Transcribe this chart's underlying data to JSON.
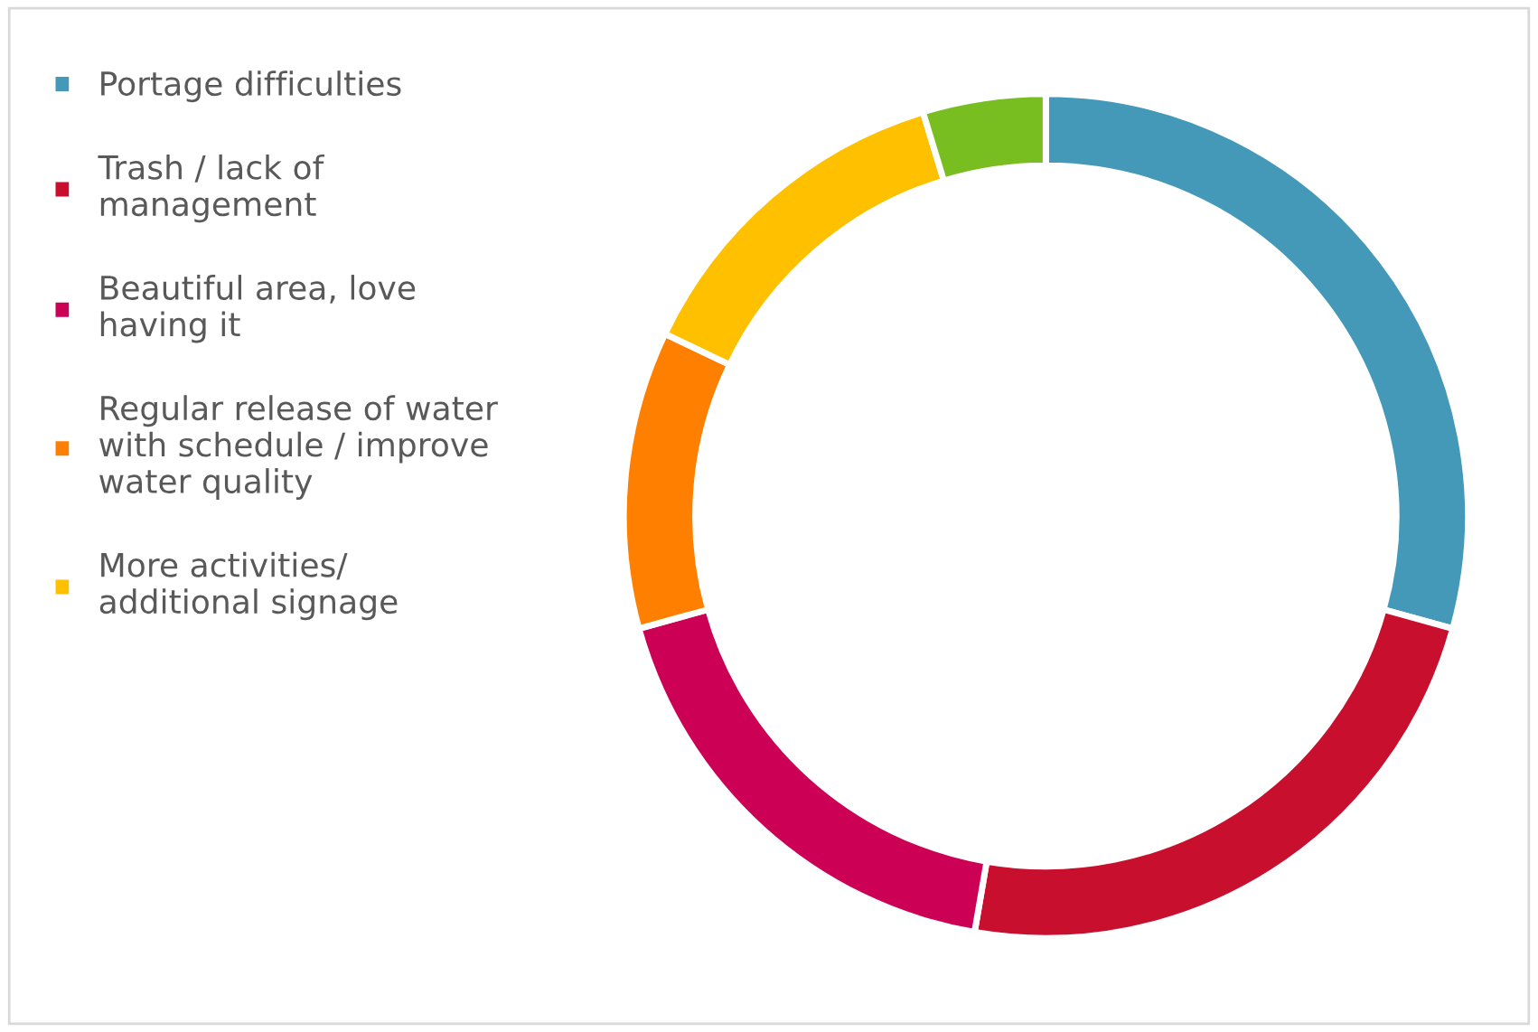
{
  "chart_data": {
    "type": "donut",
    "categories": [
      "Portage difficulties",
      "Trash / lack of\nmanagement",
      "Beautiful area, love\nhaving it",
      "Regular release of water\nwith schedule / improve\nwater quality",
      "More activities/\nadditional signage",
      null
    ],
    "values": [
      29.3,
      23.4,
      18.0,
      11.4,
      13.2,
      4.7
    ],
    "colors": [
      "#4499b8",
      "#c8102e",
      "#cc0055",
      "#ff8000",
      "#ffc000",
      "#78be20"
    ],
    "legend": "left"
  }
}
